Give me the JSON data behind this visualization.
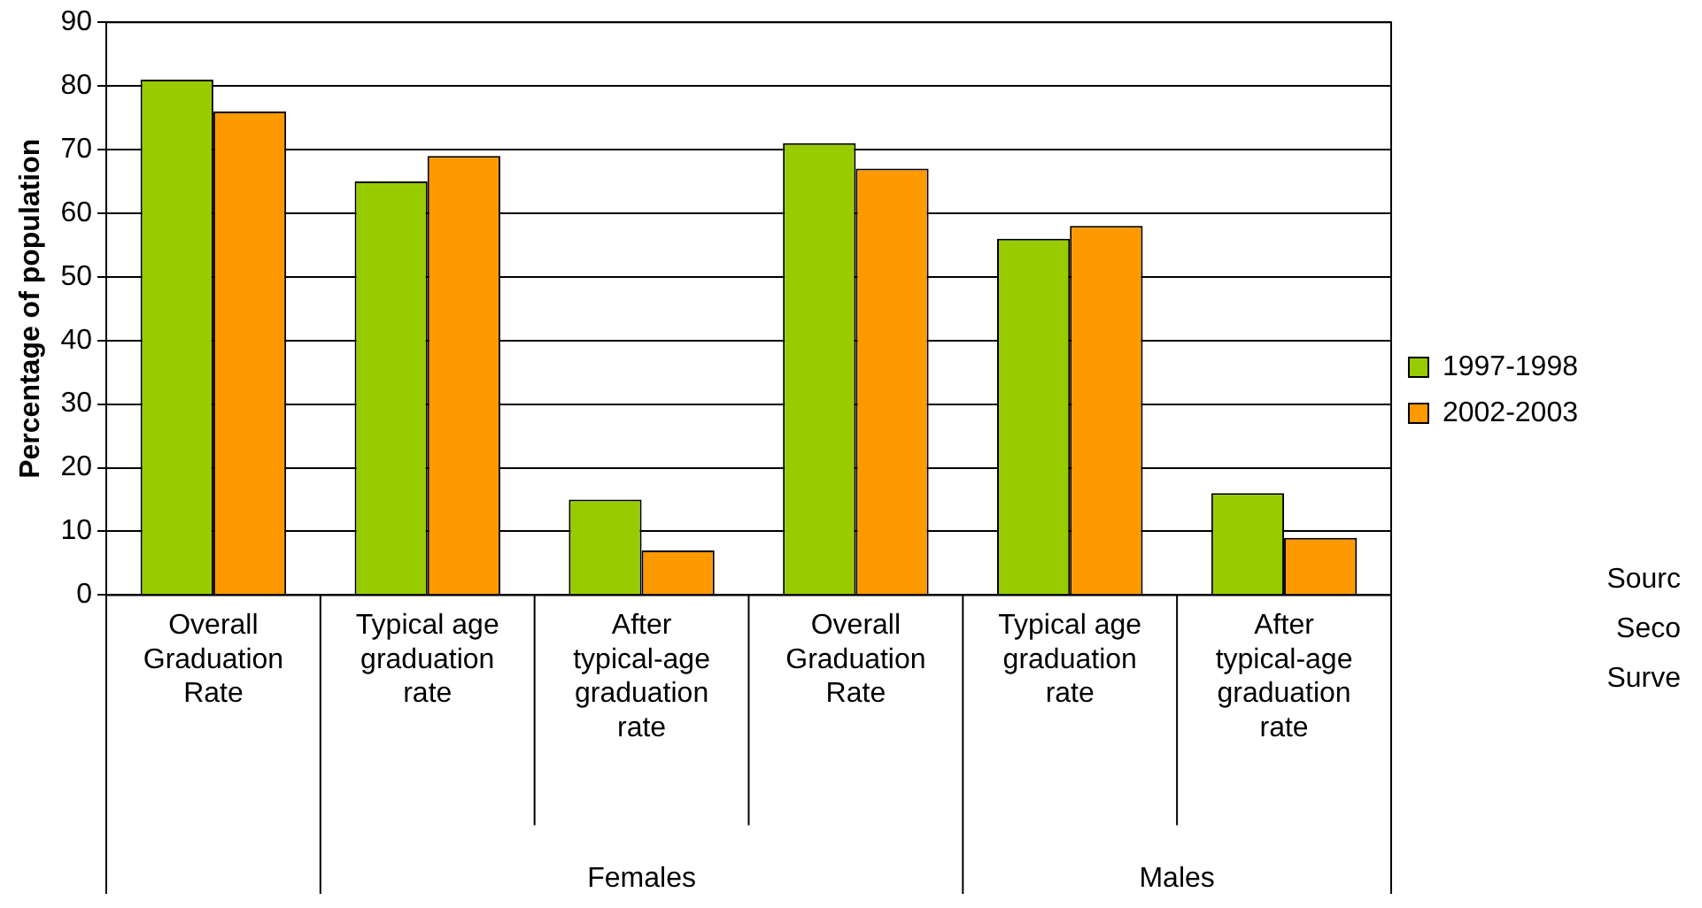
{
  "chart_data": {
    "type": "bar",
    "ylabel": "Percentage of population",
    "categories": [
      "Overall Graduation Rate",
      "Typical age graduation rate",
      "After typical-age graduation rate",
      "Overall Graduation Rate",
      "Typical age graduation rate",
      "After typical-age graduation rate"
    ],
    "series": [
      {
        "name": "1997-1998",
        "color": "#99cc00",
        "values": [
          81,
          65,
          15,
          71,
          56,
          16
        ]
      },
      {
        "name": "2002-2003",
        "color": "#ff9900",
        "values": [
          76,
          69,
          7,
          67,
          58,
          9
        ]
      }
    ],
    "ylim": [
      0,
      90
    ],
    "yticks": [
      0,
      10,
      20,
      30,
      40,
      50,
      60,
      70,
      80,
      90
    ],
    "grid": "y",
    "legend": "right",
    "annotations": [
      "Females",
      "Males",
      "Sourc",
      "Seco",
      "Surve"
    ]
  }
}
